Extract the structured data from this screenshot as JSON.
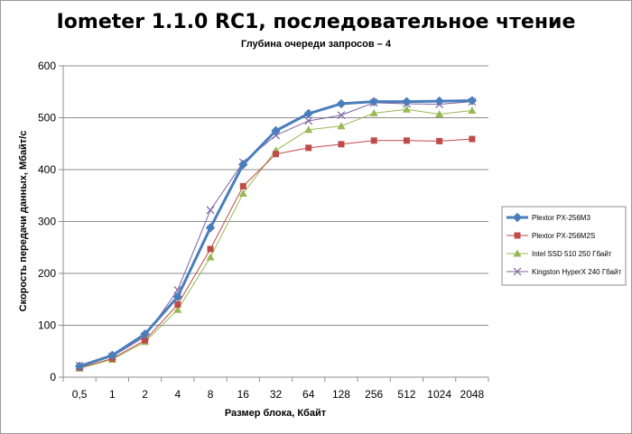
{
  "chart_data": {
    "type": "line",
    "title": "Iometer 1.1.0 RC1, последовательное чтение",
    "subtitle": "Глубина очереди запросов – 4",
    "xlabel": "Размер блока, Кбайт",
    "ylabel": "Скорость передачи данных, Мбайт/с",
    "categories": [
      "0,5",
      "1",
      "2",
      "4",
      "8",
      "16",
      "32",
      "64",
      "128",
      "256",
      "512",
      "1024",
      "2048"
    ],
    "ylim": [
      0,
      600
    ],
    "yticks": [
      0,
      100,
      200,
      300,
      400,
      500,
      600
    ],
    "grid": "horizontal",
    "legend_position": "right",
    "series": [
      {
        "name": "Plextor PX-256M3",
        "marker": "diamond",
        "color": "#4a7ebb",
        "values": [
          21,
          42,
          83,
          155,
          288,
          410,
          475,
          508,
          527,
          531,
          531,
          532,
          533
        ]
      },
      {
        "name": "Plextor PX-256M2S",
        "marker": "square",
        "color": "#be4b48",
        "values": [
          18,
          36,
          71,
          140,
          247,
          368,
          430,
          442,
          449,
          456,
          456,
          455,
          459
        ]
      },
      {
        "name": "Intel SSD 510 250 Гбайт",
        "marker": "triangle",
        "color": "#98b954",
        "values": [
          17,
          34,
          68,
          130,
          231,
          354,
          437,
          477,
          484,
          509,
          516,
          507,
          514
        ]
      },
      {
        "name": "Kingston HyperX 240 Гбайт",
        "marker": "x",
        "color": "#7d60a0",
        "values": [
          22,
          40,
          78,
          168,
          322,
          414,
          466,
          494,
          505,
          529,
          527,
          526,
          531
        ]
      }
    ]
  }
}
